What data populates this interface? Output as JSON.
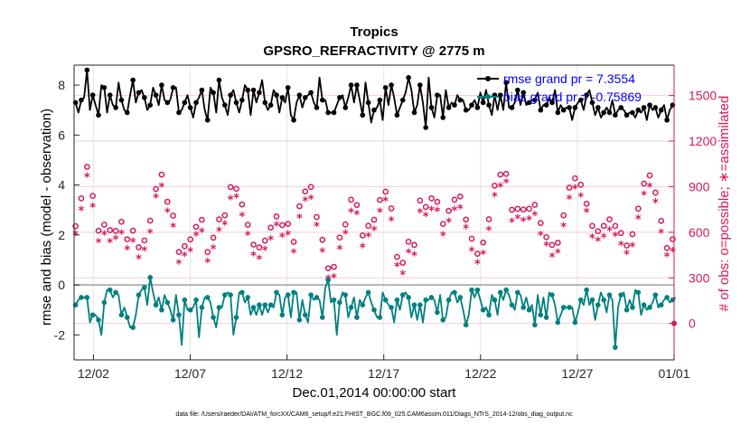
{
  "chart_data": {
    "type": "line",
    "title": "Tropics",
    "subtitle": "GPSRO_REFRACTIVITY @ 2775 m",
    "xlabel": "Dec.01,2014 00:00:00 start",
    "ylabel": "rmse and bias (model - observation)",
    "ylabel_right": "# of obs: o=possible; ∗=assimilated",
    "x_tick_labels": [
      "12/02",
      "12/07",
      "12/12",
      "12/17",
      "12/22",
      "12/27",
      "01/01"
    ],
    "x_tick_positions": [
      1,
      6,
      11,
      16,
      21,
      26,
      31
    ],
    "xlim": [
      0,
      31
    ],
    "y_ticks": [
      -2,
      0,
      2,
      4,
      6,
      8
    ],
    "y_tick_labels": [
      "-2",
      "0",
      "2",
      "4",
      "6",
      "8"
    ],
    "ylim": [
      -3,
      8.8
    ],
    "y2_ticks": [
      0,
      300,
      600,
      900,
      1200,
      1500
    ],
    "y2_tick_labels": [
      "0",
      "300",
      "600",
      "900",
      "1200",
      "1500"
    ],
    "y2lim": [
      -240,
      1700
    ],
    "legend": {
      "position": "top-right",
      "entries": [
        "rmse grand pr = 7.3554",
        "bias grand pr = -0.75869"
      ]
    },
    "footnote": "data file: /Users/raeder/DAI/ATM_forcXX/CAM6_setup/f.e21.FHIST_BGC.f09_025.CAM6assim.011/Diags_NTrS_2014-12/obs_diag_output.nc",
    "colors": {
      "rmse": "#000000",
      "bias": "#008080",
      "obs": "#d6195a",
      "zero_line": "#b3b3b3",
      "legend_text": "#0000ff"
    },
    "series": [
      {
        "name": "rmse",
        "values": [
          7.3,
          6.9,
          7.4,
          7.5,
          8.6,
          7.0,
          7.6,
          7.2,
          6.8,
          8.0,
          7.9,
          6.9,
          7.6,
          7.2,
          7.1,
          8.1,
          7.4,
          7.0,
          6.9,
          7.6,
          8.2,
          7.3,
          7.7,
          7.8,
          7.5,
          7.0,
          7.2,
          7.9,
          7.6,
          7.2,
          8.0,
          7.4,
          7.3,
          7.4,
          7.9,
          7.9,
          6.9,
          7.0,
          7.3,
          7.6,
          7.1,
          6.7,
          7.3,
          7.5,
          7.8,
          7.0,
          6.6,
          7.9,
          7.7,
          6.9,
          8.2,
          7.5,
          7.2,
          6.8,
          7.6,
          7.8,
          7.3,
          6.9,
          7.4,
          8.0,
          7.8,
          6.8,
          7.8,
          7.3,
          7.7,
          8.2,
          7.3,
          7.0,
          7.2,
          7.8,
          7.6,
          6.9,
          7.5,
          7.3,
          7.9,
          6.8,
          6.6,
          7.3,
          7.6,
          7.1,
          7.5,
          7.6,
          7.7,
          7.3,
          7.1,
          8.3,
          7.4,
          7.4,
          6.9,
          6.9,
          6.9,
          7.2,
          7.5,
          7.6,
          7.1,
          7.5,
          8.0,
          7.3,
          8.0,
          7.4,
          6.8,
          8.1,
          7.3,
          6.5,
          7.0,
          7.1,
          7.4,
          6.6,
          7.9,
          7.2,
          8.0,
          7.5,
          6.8,
          7.1,
          7.4,
          7.7,
          8.3,
          7.8,
          6.9,
          7.2,
          8.0,
          7.3,
          6.3,
          8.3,
          7.1,
          6.7,
          7.6,
          7.6,
          6.7,
          7.8,
          7.1,
          7.3,
          7.2,
          7.6,
          7.4,
          7.4,
          7.0,
          7.0,
          7.2,
          7.4,
          7.1,
          7.7,
          7.3,
          7.8,
          7.2,
          6.8,
          7.6,
          7.0,
          7.6,
          7.0,
          8.1,
          7.1,
          7.1,
          7.3,
          7.8,
          7.2,
          7.7,
          7.2,
          7.3,
          7.4,
          7.4,
          7.7,
          7.0,
          7.2,
          7.2,
          7.5,
          7.3,
          7.8,
          6.9,
          7.2,
          7.0,
          7.1,
          7.1,
          6.6,
          7.1,
          7.3,
          7.4,
          7.0,
          7.6,
          7.8,
          7.3,
          6.8,
          7.1,
          6.7,
          6.9,
          7.1,
          6.9,
          7.4,
          6.8,
          7.0,
          7.1,
          7.0,
          6.8,
          6.9,
          6.9,
          6.7,
          7.0,
          6.9,
          7.1,
          6.6,
          7.2,
          7.0,
          7.1,
          6.7,
          7.0,
          7.2,
          6.6,
          7.0,
          7.2
        ]
      },
      {
        "name": "bias",
        "values": [
          -0.8,
          -0.6,
          -0.5,
          -0.5,
          -0.5,
          -1.5,
          -1.2,
          -1.2,
          -1.4,
          -2.0,
          -0.7,
          -0.2,
          -0.2,
          -0.5,
          -0.3,
          -0.4,
          -1.2,
          -0.9,
          -1.3,
          -1.7,
          -1.7,
          -1.2,
          -0.4,
          -0.2,
          -0.1,
          -0.8,
          0.3,
          -0.3,
          -0.8,
          -0.5,
          -1.0,
          -0.4,
          -0.7,
          -1.0,
          -1.4,
          -0.4,
          -1.2,
          -2.4,
          -0.6,
          -1.0,
          -1.0,
          -0.9,
          -0.6,
          -2.1,
          -0.9,
          -0.5,
          -0.5,
          -0.7,
          -1.3,
          -1.7,
          -0.9,
          -0.9,
          -0.4,
          -0.3,
          -0.4,
          -2.0,
          -1.3,
          -0.3,
          -0.3,
          -0.7,
          -0.5,
          -1.2,
          -0.9,
          -1.2,
          -0.8,
          -1.2,
          -0.8,
          -1.1,
          -0.8,
          -0.9,
          -0.3,
          -0.4,
          -1.2,
          -0.5,
          -0.4,
          -1.3,
          -0.3,
          -0.3,
          -1.4,
          -0.6,
          -1.2,
          -1.5,
          -0.4,
          -0.6,
          -0.5,
          -0.6,
          -1.3,
          -0.1,
          0.2,
          -0.7,
          -0.6,
          -2.0,
          -0.7,
          -0.3,
          -0.4,
          -1.3,
          -0.9,
          -0.5,
          -1.3,
          -0.6,
          -0.8,
          -0.5,
          -0.3,
          -0.7,
          -1.0,
          -1.3,
          -1.3,
          -0.3,
          -0.6,
          -0.8,
          -0.9,
          -1.5,
          -0.6,
          -1.0,
          -0.4,
          -0.3,
          -0.5,
          -1.3,
          -0.8,
          -1.4,
          -0.8,
          -1.5,
          -0.6,
          -0.6,
          -0.5,
          -0.6,
          -1.1,
          -0.4,
          -1.4,
          -1.3,
          -0.6,
          -0.3,
          -0.3,
          -0.7,
          -0.5,
          -1.0,
          -1.6,
          -1.2,
          -0.2,
          -0.5,
          -0.2,
          -0.6,
          -1.0,
          -0.9,
          -1.2,
          -0.4,
          -0.6,
          -1.2,
          -0.3,
          -0.6,
          -0.2,
          -0.4,
          -0.8,
          -1.0,
          -0.3,
          -0.4,
          -0.9,
          -0.5,
          -1.0,
          -0.8,
          -1.6,
          -0.4,
          -1.2,
          -0.5,
          -1.3,
          -0.3,
          -0.4,
          -0.8,
          -1.5,
          -1.2,
          -0.9,
          -0.9,
          -0.9,
          -0.9,
          -1.5,
          -1.1,
          -0.6,
          -0.8,
          -0.2,
          -0.8,
          -0.6,
          -1.4,
          -0.8,
          -0.3,
          -0.6,
          -1.1,
          -0.4,
          -0.6,
          -2.5,
          -0.9,
          -0.4,
          -0.3,
          -1.0,
          -0.6,
          -0.9,
          -0.2,
          -0.3,
          -1.2,
          -0.8,
          -1.0,
          -0.9,
          -0.7,
          -0.4,
          -0.9,
          -0.8,
          -0.6,
          -0.5,
          -0.7,
          -0.6,
          -0.5
        ]
      }
    ]
  }
}
